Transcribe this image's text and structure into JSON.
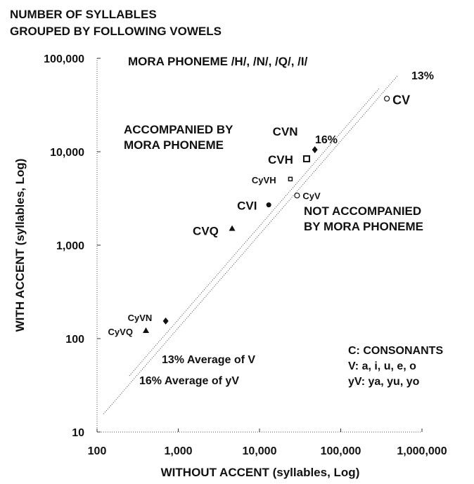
{
  "chart_data": {
    "type": "scatter",
    "title": [
      "NUMBER OF SYLLABLES",
      "GROUPED BY FOLLOWING VOWELS"
    ],
    "subtitle": "MORA PHONEME /H/, /N/, /Q/, /I/",
    "x_label": "WITHOUT ACCENT (syllables, Log)",
    "y_label": "WITH ACCENT (syllables, Log)",
    "log_x": true,
    "log_y": true,
    "xlim": [
      100,
      1000000
    ],
    "ylim": [
      10,
      100000
    ],
    "xticks": [
      100,
      {
        "value": 1000,
        "label": "1,000"
      },
      {
        "value": 10000,
        "label": "10,000"
      },
      {
        "value": 100000,
        "label": "100,000"
      },
      {
        "value": 1000000,
        "label": "1,000,000"
      }
    ],
    "yticks": [
      10,
      100,
      {
        "value": 1000,
        "label": "1,000"
      },
      {
        "value": 10000,
        "label": "10,000"
      },
      {
        "value": 100000,
        "label": "100,000"
      }
    ],
    "series": [
      {
        "name": "CV",
        "marker": "open-circle",
        "x": [
          370000
        ],
        "values": [
          37000
        ]
      },
      {
        "name": "CVN",
        "marker": "diamond",
        "x": [
          48000
        ],
        "values": [
          10500
        ]
      },
      {
        "name": "CVH",
        "marker": "square",
        "x": [
          38000
        ],
        "values": [
          8400
        ]
      },
      {
        "name": "CyVH",
        "marker": "small-square",
        "x": [
          24000
        ],
        "values": [
          5100
        ]
      },
      {
        "name": "CyV",
        "marker": "open-circle",
        "x": [
          29000
        ],
        "values": [
          3400
        ]
      },
      {
        "name": "CVI",
        "marker": "circle",
        "x": [
          13000
        ],
        "values": [
          2700
        ]
      },
      {
        "name": "CVQ",
        "marker": "triangle",
        "x": [
          4600
        ],
        "values": [
          1500
        ]
      },
      {
        "name": "CyVN",
        "marker": "diamond",
        "x": [
          700
        ],
        "values": [
          154
        ]
      },
      {
        "name": "CyVQ",
        "marker": "triangle",
        "x": [
          400
        ],
        "values": [
          121
        ]
      }
    ],
    "ratio_lines": [
      {
        "value": 13,
        "label": "13%",
        "note": "13% Average of V"
      },
      {
        "value": 16,
        "label": "16%",
        "note": "16% Average of yV"
      }
    ],
    "annotations": [
      [
        "ACCOMPANIED BY",
        "MORA  PHONEME"
      ],
      [
        "NOT ACCOMPANIED",
        "BY MORA PHONEME"
      ],
      [
        "C: CONSONANTS",
        "V: a, i, u, e, o",
        "yV: ya, yu, yo"
      ]
    ]
  }
}
